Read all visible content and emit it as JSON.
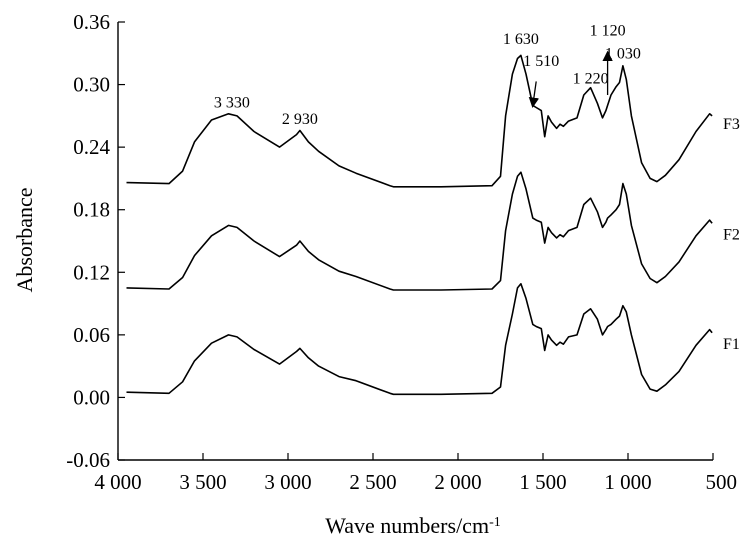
{
  "chart_data": {
    "type": "line",
    "xlabel": "Wave numbers/cm",
    "xlabel_sup": "-1",
    "ylabel": "Absorbance",
    "xlim": [
      4000,
      500
    ],
    "ylim": [
      -0.06,
      0.36
    ],
    "x_ticks": [
      4000,
      3500,
      3000,
      2500,
      2000,
      1500,
      1000,
      500
    ],
    "x_tick_labels": [
      "4 000",
      "3 500",
      "3 000",
      "2 500",
      "2 000",
      "1 500",
      "1 000",
      "500"
    ],
    "y_ticks": [
      -0.06,
      0.0,
      0.06,
      0.12,
      0.18,
      0.24,
      0.3,
      0.36
    ],
    "y_tick_labels": [
      "-0.06",
      "0.00",
      "0.06",
      "0.12",
      "0.18",
      "0.24",
      "0.30",
      "0.36"
    ],
    "grid": false,
    "legend": "none",
    "line_color": "#000000",
    "series": [
      {
        "name": "F1",
        "x": [
          3950,
          3700,
          3620,
          3550,
          3450,
          3350,
          3300,
          3200,
          3050,
          2950,
          2930,
          2880,
          2820,
          2700,
          2600,
          2400,
          2380,
          2100,
          1800,
          1750,
          1720,
          1680,
          1650,
          1630,
          1600,
          1560,
          1540,
          1510,
          1490,
          1470,
          1450,
          1420,
          1400,
          1380,
          1350,
          1300,
          1260,
          1220,
          1180,
          1150,
          1130,
          1120,
          1100,
          1070,
          1050,
          1030,
          1010,
          980,
          920,
          870,
          830,
          780,
          700,
          600,
          520,
          505
        ],
        "y": [
          0.005,
          0.004,
          0.015,
          0.035,
          0.052,
          0.06,
          0.058,
          0.046,
          0.032,
          0.044,
          0.047,
          0.038,
          0.03,
          0.02,
          0.016,
          0.004,
          0.003,
          0.003,
          0.004,
          0.01,
          0.05,
          0.08,
          0.105,
          0.109,
          0.095,
          0.07,
          0.068,
          0.066,
          0.045,
          0.06,
          0.055,
          0.05,
          0.053,
          0.051,
          0.058,
          0.06,
          0.08,
          0.085,
          0.075,
          0.06,
          0.065,
          0.068,
          0.07,
          0.075,
          0.078,
          0.088,
          0.082,
          0.06,
          0.022,
          0.008,
          0.006,
          0.012,
          0.025,
          0.05,
          0.065,
          0.062
        ]
      },
      {
        "name": "F2",
        "x": [
          3950,
          3700,
          3620,
          3550,
          3450,
          3350,
          3300,
          3200,
          3050,
          2950,
          2930,
          2880,
          2820,
          2700,
          2600,
          2400,
          2380,
          2100,
          1800,
          1750,
          1720,
          1680,
          1650,
          1630,
          1600,
          1560,
          1540,
          1510,
          1490,
          1470,
          1450,
          1420,
          1400,
          1380,
          1350,
          1300,
          1260,
          1220,
          1180,
          1150,
          1130,
          1120,
          1100,
          1070,
          1050,
          1030,
          1010,
          980,
          920,
          870,
          830,
          780,
          700,
          600,
          520,
          505
        ],
        "y": [
          0.105,
          0.104,
          0.115,
          0.136,
          0.155,
          0.165,
          0.163,
          0.15,
          0.135,
          0.146,
          0.15,
          0.14,
          0.132,
          0.121,
          0.116,
          0.104,
          0.103,
          0.103,
          0.104,
          0.112,
          0.16,
          0.195,
          0.212,
          0.216,
          0.2,
          0.172,
          0.17,
          0.168,
          0.148,
          0.163,
          0.158,
          0.153,
          0.156,
          0.154,
          0.16,
          0.163,
          0.185,
          0.191,
          0.178,
          0.163,
          0.168,
          0.172,
          0.175,
          0.18,
          0.185,
          0.205,
          0.195,
          0.165,
          0.128,
          0.114,
          0.11,
          0.116,
          0.13,
          0.155,
          0.17,
          0.167
        ]
      },
      {
        "name": "F3",
        "x": [
          3950,
          3700,
          3620,
          3550,
          3450,
          3350,
          3300,
          3200,
          3050,
          2950,
          2930,
          2880,
          2820,
          2700,
          2600,
          2400,
          2380,
          2100,
          1800,
          1750,
          1720,
          1680,
          1650,
          1630,
          1600,
          1560,
          1540,
          1510,
          1490,
          1470,
          1450,
          1420,
          1400,
          1380,
          1350,
          1300,
          1260,
          1220,
          1180,
          1150,
          1130,
          1120,
          1100,
          1070,
          1050,
          1030,
          1010,
          980,
          920,
          870,
          830,
          780,
          700,
          600,
          520,
          505
        ],
        "y": [
          0.206,
          0.205,
          0.217,
          0.245,
          0.266,
          0.272,
          0.27,
          0.255,
          0.24,
          0.252,
          0.256,
          0.245,
          0.236,
          0.222,
          0.215,
          0.203,
          0.202,
          0.202,
          0.203,
          0.212,
          0.27,
          0.31,
          0.325,
          0.328,
          0.31,
          0.28,
          0.278,
          0.275,
          0.25,
          0.27,
          0.264,
          0.258,
          0.262,
          0.26,
          0.265,
          0.268,
          0.29,
          0.297,
          0.282,
          0.268,
          0.275,
          0.28,
          0.29,
          0.298,
          0.302,
          0.318,
          0.305,
          0.27,
          0.225,
          0.21,
          0.207,
          0.213,
          0.228,
          0.255,
          0.272,
          0.27
        ]
      }
    ],
    "series_labels": [
      {
        "text": "F1",
        "y": 0.052
      },
      {
        "text": "F2",
        "y": 0.157
      },
      {
        "text": "F3",
        "y": 0.263
      }
    ],
    "peak_annotations": [
      {
        "text": "3 330",
        "x": 3330,
        "y": 0.278
      },
      {
        "text": "2 930",
        "x": 2930,
        "y": 0.262
      },
      {
        "text": "1 630",
        "x": 1630,
        "y": 0.339
      },
      {
        "text": "1 510",
        "x": 1510,
        "y": 0.318
      },
      {
        "text": "1 220",
        "x": 1220,
        "y": 0.301
      },
      {
        "text": "1 120",
        "x": 1120,
        "y": 0.347
      },
      {
        "text": "1 030",
        "x": 1030,
        "y": 0.325
      }
    ],
    "peak_arrows": [
      {
        "name": "arrow-1510",
        "from": [
          1540,
          0.303
        ],
        "to": [
          1560,
          0.28
        ]
      },
      {
        "name": "arrow-1120",
        "from": [
          1120,
          0.29
        ],
        "to": [
          1120,
          0.33
        ]
      }
    ]
  }
}
